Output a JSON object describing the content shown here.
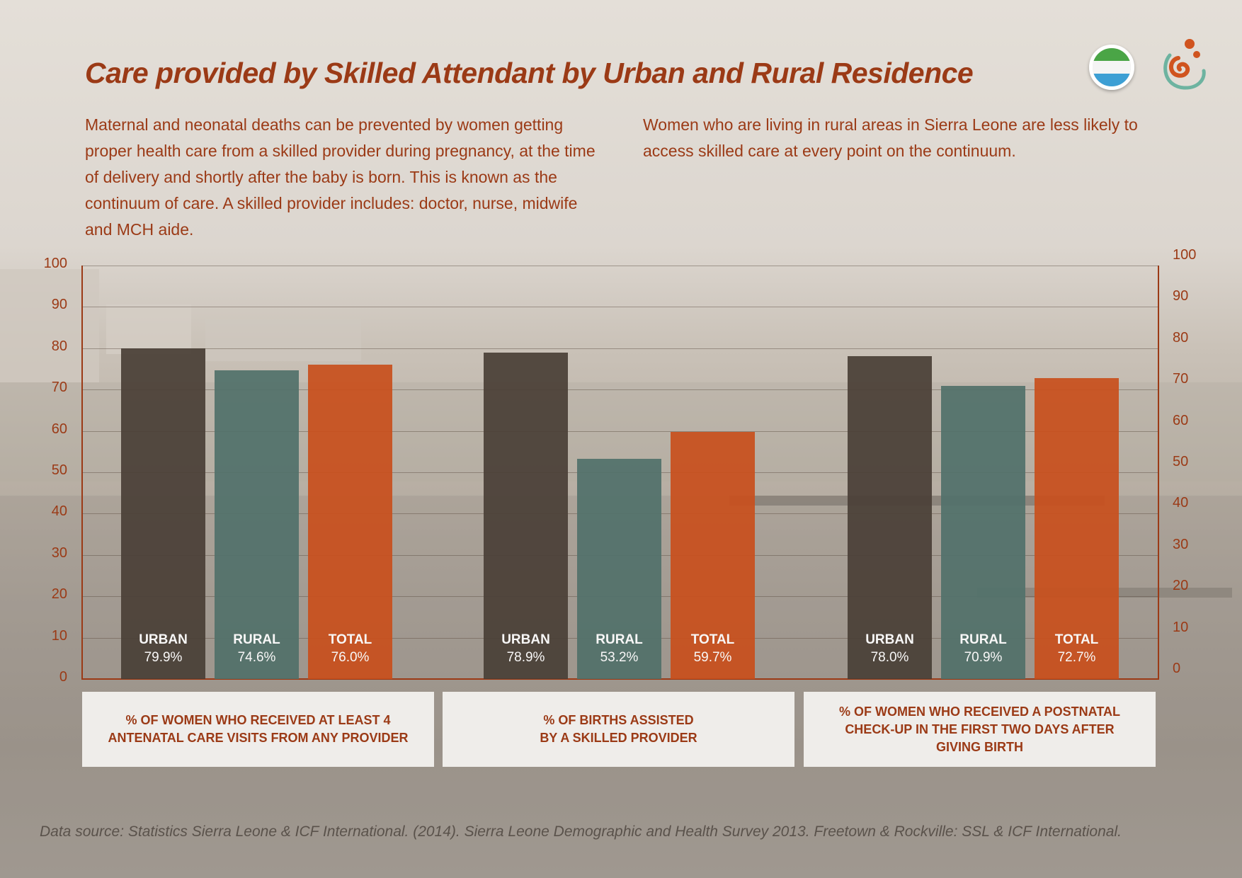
{
  "header": {
    "title": "Care provided by Skilled Attendant by Urban and Rural Residence",
    "intro_left": "Maternal and neonatal deaths can be prevented by women getting proper health care from a skilled provider during pregnancy, at the time of delivery and shortly after the baby is born. This is known as the continuum of care. A skilled provider includes: doctor, nurse, midwife and MCH aide.",
    "intro_right": "Women who are living in rural areas in Sierra Leone are less likely to access skilled care at every point on the continuum.",
    "flag_colors": [
      "#4aa546",
      "#ffffff",
      "#3d9fd4"
    ],
    "logo_colors": [
      "#d0541f",
      "#6db3a0"
    ]
  },
  "chart_data": {
    "type": "bar",
    "title": "Care provided by Skilled Attendant by Urban and Rural Residence",
    "ylim": [
      0,
      100
    ],
    "yticks": [
      0,
      10,
      20,
      30,
      40,
      50,
      60,
      70,
      80,
      90,
      100
    ],
    "grid": true,
    "categories": [
      "% OF WOMEN WHO RECEIVED AT LEAST 4 ANTENATAL CARE VISITS FROM ANY PROVIDER",
      "% OF BIRTHS ASSISTED\nBY A SKILLED PROVIDER",
      "% OF  WOMEN WHO RECEIVED A POSTNATAL CHECK-UP IN THE FIRST TWO DAYS AFTER GIVING BIRTH"
    ],
    "series": [
      {
        "name": "URBAN",
        "color": "#4a4037",
        "values": [
          79.9,
          78.9,
          78.0
        ],
        "labels": [
          "79.9%",
          "78.9%",
          "78.0%"
        ]
      },
      {
        "name": "RURAL",
        "color": "#52716a",
        "values": [
          74.6,
          53.2,
          70.9
        ],
        "labels": [
          "74.6%",
          "53.2%",
          "70.9%"
        ]
      },
      {
        "name": "TOTAL",
        "color": "#c8501d",
        "values": [
          76.0,
          59.7,
          72.7
        ],
        "labels": [
          "76.0%",
          "59.7%",
          "72.7%"
        ]
      }
    ]
  },
  "footer": {
    "source": "Data source: Statistics Sierra Leone & ICF International. (2014). Sierra Leone Demographic and Health Survey 2013. Freetown & Rockville: SSL & ICF International."
  }
}
